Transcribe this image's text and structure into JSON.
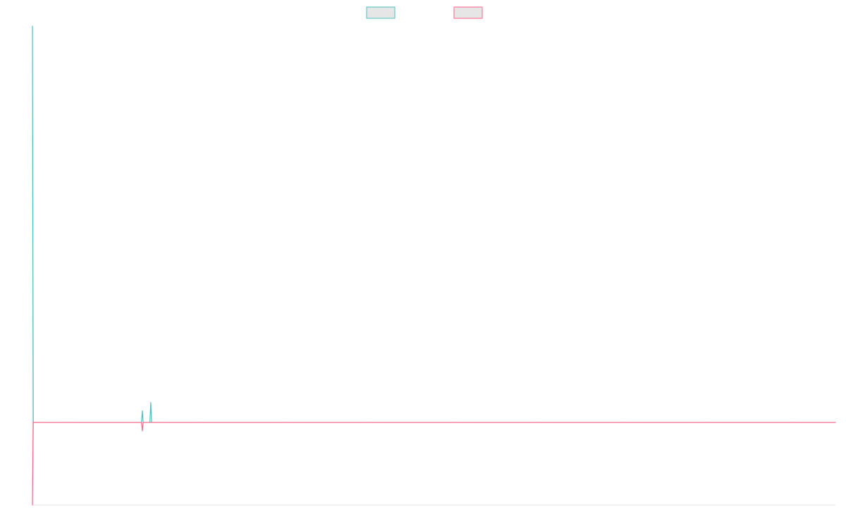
{
  "chart_data": {
    "type": "line",
    "title": "",
    "xlabel": "",
    "ylabel": "",
    "grid": false,
    "legend_placement": "top-center",
    "x_range": [
      0,
      950
    ],
    "ylim": [
      -100,
      480
    ],
    "x": [
      0,
      1,
      2,
      3,
      4,
      5,
      6,
      8,
      10,
      40,
      42,
      128,
      129,
      130,
      131,
      138,
      139,
      140,
      141,
      142,
      145,
      150,
      200,
      300,
      400,
      500,
      600,
      700,
      800,
      900,
      950
    ],
    "series": [
      {
        "name": "",
        "color": "#4bc0c0",
        "fill": "#e6e6e6",
        "values": [
          480,
          0,
          0,
          0,
          0,
          0,
          0,
          0,
          0,
          0,
          0,
          0,
          0,
          14,
          0,
          0,
          0,
          24,
          0,
          0,
          0,
          0,
          0,
          0,
          0,
          0,
          0,
          0,
          0,
          0,
          0
        ]
      },
      {
        "name": "",
        "color": "#ff6384",
        "fill": "#e6e6e6",
        "values": [
          -100,
          0,
          0,
          0,
          0,
          0,
          0,
          0,
          0,
          0,
          0,
          0,
          0,
          -10,
          0,
          0,
          0,
          0,
          0,
          0,
          0,
          0,
          0,
          0,
          0,
          0,
          0,
          0,
          0,
          0,
          0
        ]
      }
    ]
  }
}
